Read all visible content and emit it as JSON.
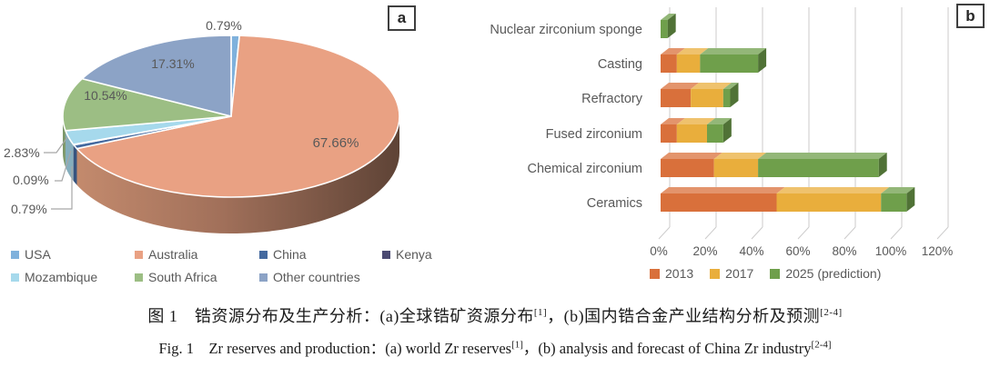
{
  "panel_a": {
    "tag_label": "a"
  },
  "panel_b": {
    "tag_label": "b"
  },
  "caption": {
    "zh": {
      "part1": "图 1　锆资源分布及生产分析：(a)全球锆矿资源分布",
      "sup1": "[1]",
      "part2": "，(b)国内锆合金产业结构分析及预测",
      "sup2": "[2-4]"
    },
    "en": {
      "part1": "Fig. 1　Zr reserves and production：(a) world Zr reserves",
      "sup1": "[1]",
      "part2": "，(b) analysis and forecast of China Zr industry",
      "sup2": "[2-4]"
    }
  },
  "chart_data": [
    {
      "id": "a",
      "type": "pie",
      "style": "3d",
      "title": "",
      "labels": [
        "USA",
        "Australia",
        "China",
        "Kenya",
        "Mozambique",
        "South Africa",
        "Other countries"
      ],
      "values": [
        0.79,
        67.66,
        0.79,
        0.09,
        2.83,
        10.54,
        17.31
      ],
      "colors": [
        "#7FB1DC",
        "#E9A183",
        "#44699F",
        "#4B4A72",
        "#A6D9EC",
        "#9CBE84",
        "#8CA3C6"
      ],
      "start_angle_deg": 0,
      "direction": "clockwise",
      "legend_position": "bottom",
      "text_color": "#595959"
    },
    {
      "id": "b",
      "type": "bar",
      "style": "3d-horizontal-stacked",
      "title": "",
      "categories": [
        "Nuclear zirconium sponge",
        "Casting",
        "Refractory",
        "Fused zirconium",
        "Chemical zirconium",
        "Ceramics"
      ],
      "series": [
        {
          "name": "2013",
          "color": "#D9703B",
          "values": [
            0,
            7,
            13,
            7,
            23,
            50
          ]
        },
        {
          "name": "2017",
          "color": "#E9AE3C",
          "values": [
            0,
            10,
            14,
            13,
            19,
            45
          ]
        },
        {
          "name": "2025  (prediction)",
          "color": "#6F9F4B",
          "values": [
            3,
            25,
            3,
            7,
            52,
            11
          ]
        }
      ],
      "xlabel": "",
      "ylabel": "",
      "xlim": [
        0,
        120
      ],
      "xticks": [
        "0%",
        "20%",
        "40%",
        "60%",
        "80%",
        "100%",
        "120%"
      ],
      "gridlines": true,
      "legend_position": "bottom",
      "text_color": "#595959"
    }
  ]
}
